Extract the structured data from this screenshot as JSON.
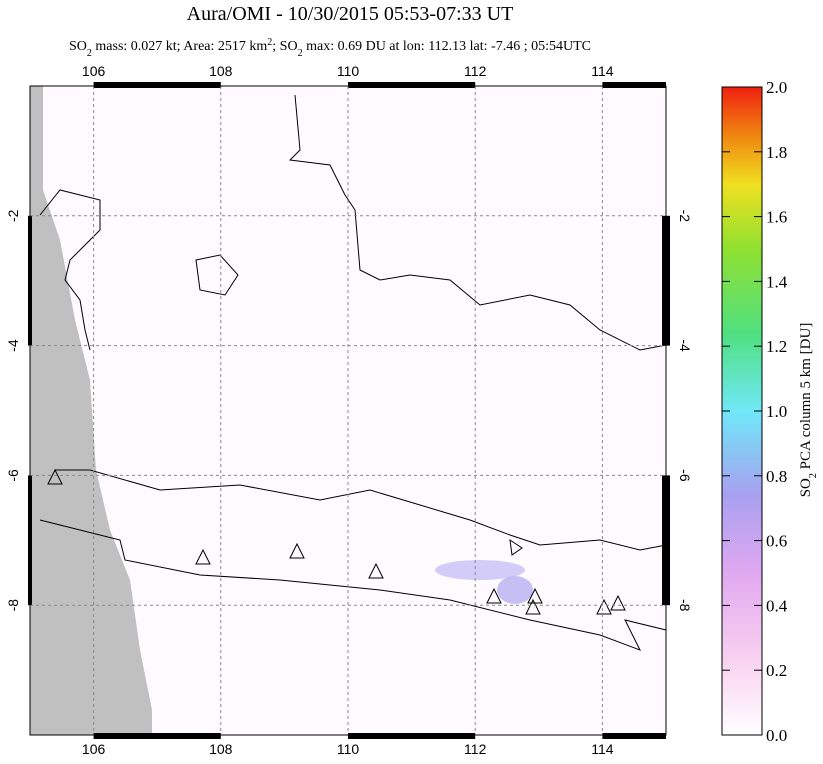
{
  "chart_data": {
    "type": "map",
    "title": "Aura/OMI - 10/30/2015 05:53-07:33 UT",
    "subtitle_parts": [
      "SO",
      "2",
      " mass: 0.027 kt; Area: 2517 km",
      "2",
      "; SO",
      "2",
      " max: 0.69 DU at lon: 112.13 lat: -7.46 ; 05:54UTC"
    ],
    "xlim": [
      105,
      115
    ],
    "xticks": [
      106,
      108,
      110,
      112,
      114
    ],
    "ylim": [
      -10,
      0
    ],
    "yticks": [
      -2,
      -4,
      -6,
      -8
    ],
    "grid": true,
    "colorbar": {
      "lim": [
        0,
        2
      ],
      "ticks": [
        {
          "value": 0,
          "label": "0.0"
        },
        {
          "value": 0.2,
          "label": "0.2"
        },
        {
          "value": 0.4,
          "label": "0.4"
        },
        {
          "value": 0.6,
          "label": "0.6"
        },
        {
          "value": 0.8,
          "label": "0.8"
        },
        {
          "value": 1,
          "label": "1.0"
        },
        {
          "value": 1.2,
          "label": "1.2"
        },
        {
          "value": 1.4,
          "label": "1.4"
        },
        {
          "value": 1.6,
          "label": "1.6"
        },
        {
          "value": 1.8,
          "label": "1.8"
        },
        {
          "value": 2,
          "label": "2.0"
        }
      ],
      "label_parts": [
        "SO",
        "2",
        " PCA column 5 km [DU]"
      ]
    }
  }
}
